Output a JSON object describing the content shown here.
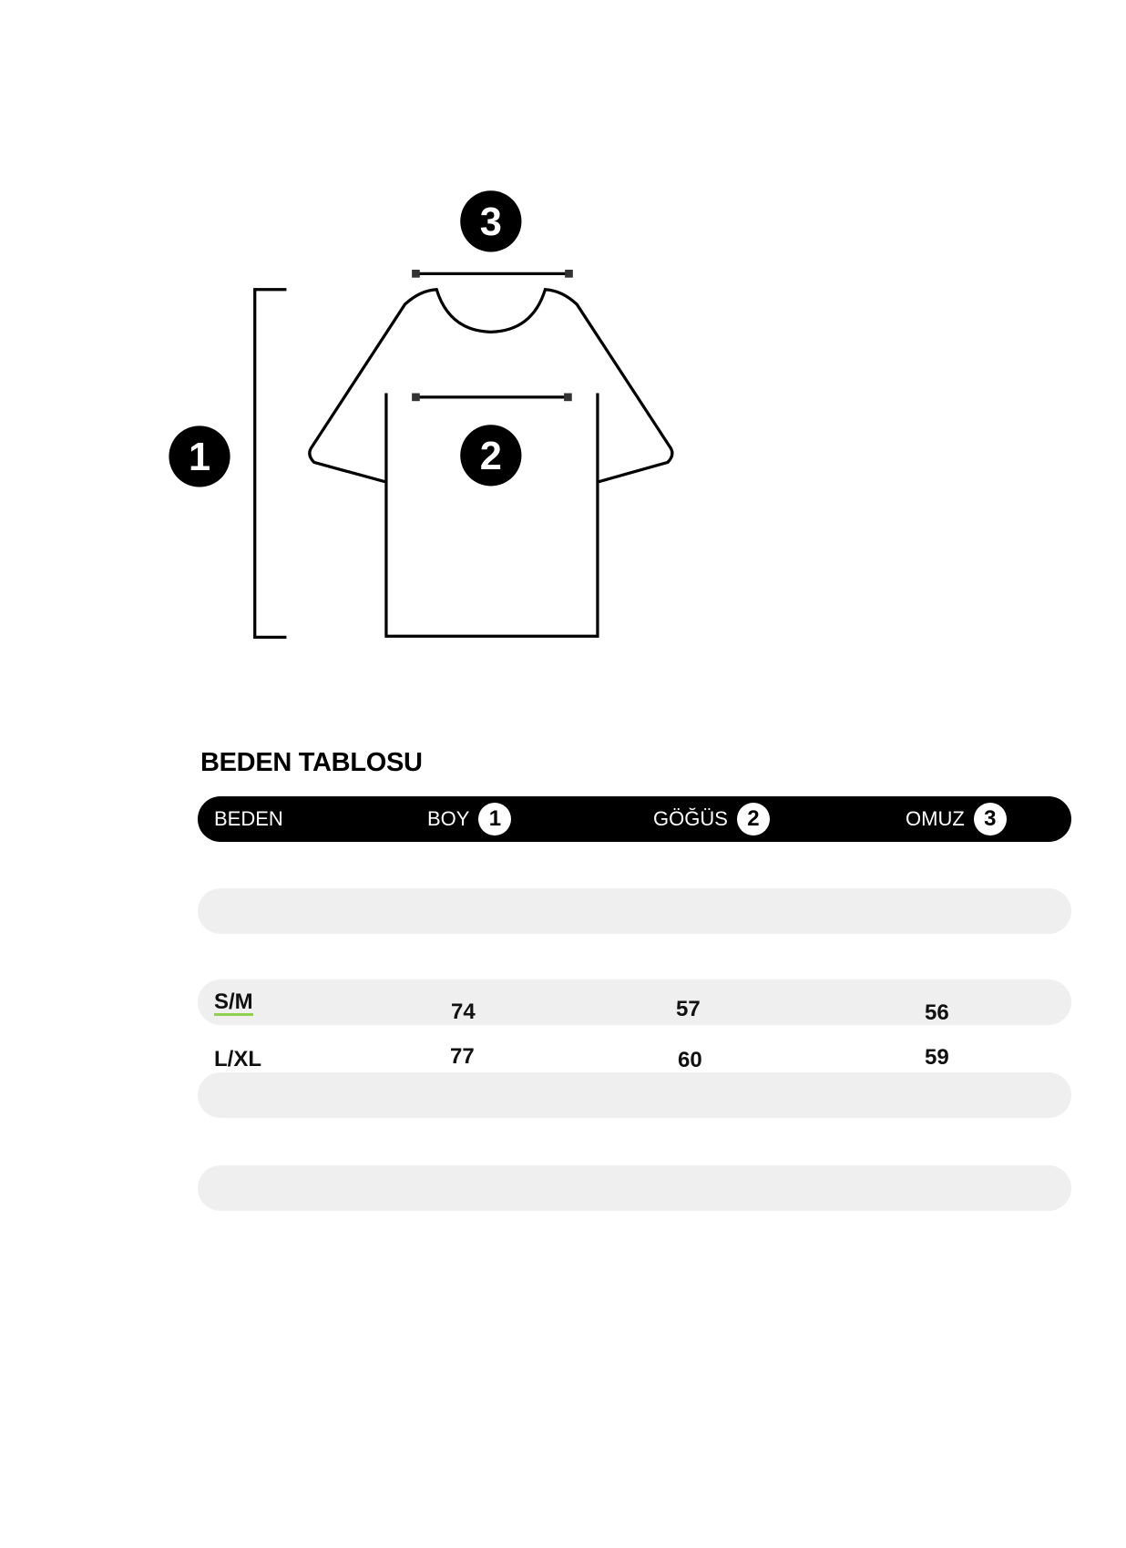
{
  "diagram": {
    "markers": [
      "1",
      "2",
      "3"
    ]
  },
  "table": {
    "title": "BEDEN TABLOSU",
    "headers": [
      {
        "label": "BEDEN"
      },
      {
        "label": "BOY",
        "marker": "1"
      },
      {
        "label": "GÖĞÜS",
        "marker": "2"
      },
      {
        "label": "OMUZ",
        "marker": "3"
      }
    ],
    "rows": [
      {
        "size": "S/M",
        "boy": "74",
        "gogus": "57",
        "omuz": "56"
      },
      {
        "size": "L/XL",
        "boy": "77",
        "gogus": "60",
        "omuz": "59"
      }
    ]
  },
  "colors": {
    "header": "#000000",
    "band": "#efefef",
    "underline": "#8fd14f"
  }
}
